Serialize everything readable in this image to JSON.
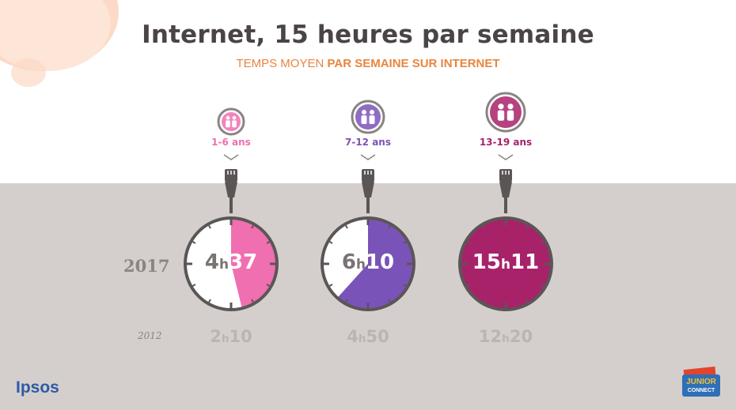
{
  "title": "Internet, 15 heures par semaine",
  "subtitle": {
    "regular": "TEMPS MOYEN ",
    "bold": "PAR SEMAINE SUR INTERNET"
  },
  "years": {
    "current": "2017",
    "previous": "2012"
  },
  "colors": {
    "g1": "#f06fb0",
    "g2": "#7a53b8",
    "g3": "#a8226a",
    "accent": "#e8853f"
  },
  "groups": [
    {
      "age": "1-6 ans",
      "color": "#f06fb0",
      "icon": "children-icon",
      "v2017": {
        "h": "4",
        "m": "37"
      },
      "v2012": {
        "h": "2",
        "m": "10"
      }
    },
    {
      "age": "7-12 ans",
      "color": "#7a53b8",
      "icon": "children-icon",
      "v2017": {
        "h": "6",
        "m": "10"
      },
      "v2012": {
        "h": "4",
        "m": "50"
      }
    },
    {
      "age": "13-19 ans",
      "color": "#a8226a",
      "icon": "teens-icon",
      "v2017": {
        "h": "15",
        "m": "11"
      },
      "v2012": {
        "h": "12",
        "m": "20"
      }
    }
  ],
  "chart_data": {
    "type": "bar",
    "categories": [
      "1-6 ans",
      "7-12 ans",
      "13-19 ans"
    ],
    "series": [
      {
        "name": "2017",
        "values": [
          4.617,
          6.167,
          15.183
        ]
      },
      {
        "name": "2012",
        "values": [
          2.167,
          4.833,
          12.333
        ]
      }
    ],
    "title": "Internet, 15 heures par semaine",
    "subtitle": "TEMPS MOYEN PAR SEMAINE SUR INTERNET",
    "unit": "h"
  },
  "logos": {
    "ipsos": "Ipsos",
    "junior": "JUNIOR",
    "connect": "CONNECT"
  }
}
